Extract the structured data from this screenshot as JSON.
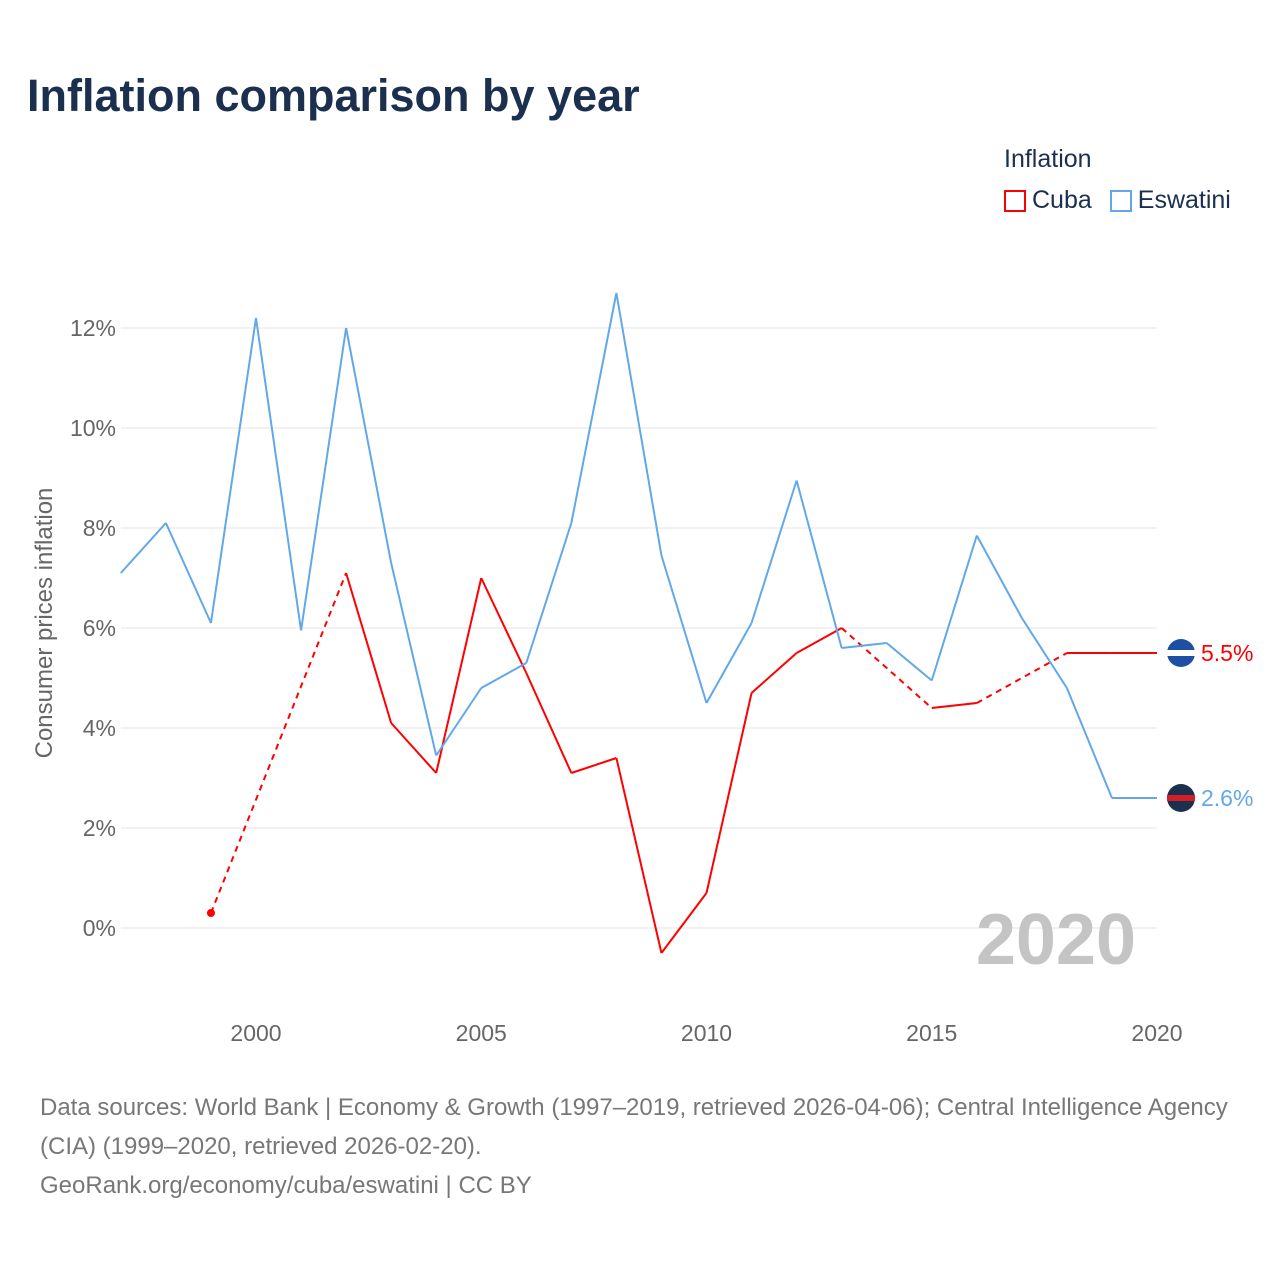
{
  "title": "Inflation comparison by year",
  "legend": {
    "title": "Inflation",
    "items": [
      {
        "name": "Cuba",
        "color": "#ff0000"
      },
      {
        "name": "Eswatini",
        "color": "#62a8e8"
      }
    ]
  },
  "sources": {
    "line1": "Data sources: World Bank | Economy & Growth (1997–2019, retrieved 2026-04-06); Central Intelligence Agency (CIA) (1999–2020, retrieved 2026-02-20).",
    "line2": "GeoRank.org/economy/cuba/eswatini | CC BY"
  },
  "chart_data": {
    "type": "line",
    "title": "Inflation comparison by year",
    "ylabel": "Consumer prices inflation",
    "xlabel": "",
    "year_watermark": "2020",
    "xlim": [
      1997,
      2020
    ],
    "ylim": [
      -1.5,
      13.5
    ],
    "x_ticks": [
      2000,
      2005,
      2010,
      2015,
      2020
    ],
    "y_ticks": [
      0,
      2,
      4,
      6,
      8,
      10,
      12
    ],
    "y_tick_labels": [
      "0%",
      "2%",
      "4%",
      "6%",
      "8%",
      "10%",
      "12%"
    ],
    "x": [
      1997,
      1998,
      1999,
      2000,
      2001,
      2002,
      2003,
      2004,
      2005,
      2006,
      2007,
      2008,
      2009,
      2010,
      2011,
      2012,
      2013,
      2014,
      2015,
      2016,
      2017,
      2018,
      2019,
      2020
    ],
    "series": [
      {
        "name": "Cuba",
        "color": "#ff0000",
        "end_label": "5.5%",
        "values": [
          null,
          null,
          0.3,
          null,
          null,
          7.1,
          4.1,
          3.1,
          7.0,
          5.1,
          3.1,
          3.4,
          -0.5,
          0.7,
          4.7,
          5.5,
          6.0,
          null,
          4.4,
          4.5,
          null,
          5.5,
          5.5,
          5.5
        ]
      },
      {
        "name": "Eswatini",
        "color": "#62a8e8",
        "end_label": "2.6%",
        "values": [
          7.1,
          8.1,
          6.1,
          12.2,
          5.95,
          12.0,
          7.3,
          3.45,
          4.8,
          5.3,
          8.1,
          12.7,
          7.45,
          4.5,
          6.1,
          8.95,
          5.6,
          5.7,
          4.95,
          7.85,
          6.2,
          4.8,
          2.6,
          2.6
        ]
      }
    ]
  }
}
